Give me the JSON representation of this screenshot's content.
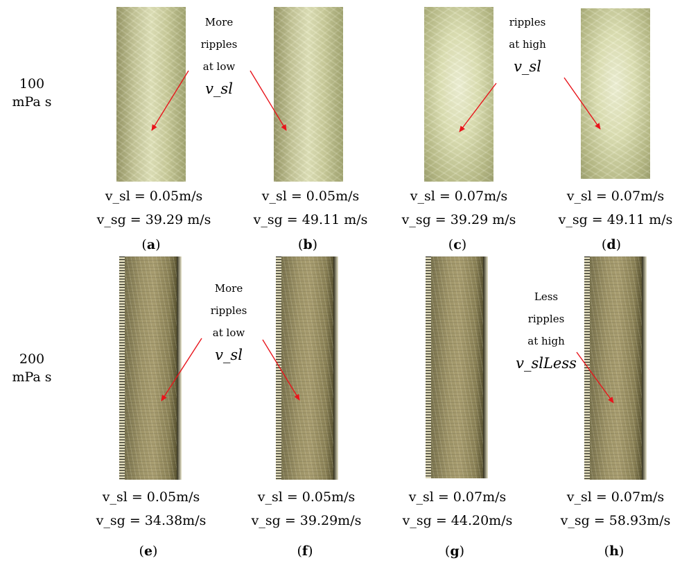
{
  "rows": [
    {
      "label_line1": "100",
      "label_line2": "mPa s",
      "annotations": [
        {
          "lines": [
            "More",
            "ripples",
            "at low"
          ],
          "math": "v_sl"
        },
        {
          "lines": [
            "ripples",
            "at high"
          ],
          "math": "v_sl"
        }
      ],
      "panels": [
        {
          "letter": "a",
          "vsl": "v_sl = 0.05m/s",
          "vsg": "v_sg = 39.29 m/s"
        },
        {
          "letter": "b",
          "vsl": "v_sl = 0.05m/s",
          "vsg": "v_sg = 49.11 m/s"
        },
        {
          "letter": "c",
          "vsl": "v_sl = 0.07m/s",
          "vsg": "v_sg = 39.29 m/s"
        },
        {
          "letter": "d",
          "vsl": "v_sl = 0.07m/s",
          "vsg": "v_sg = 49.11 m/s"
        }
      ]
    },
    {
      "label_line1": "200",
      "label_line2": "mPa s",
      "annotations": [
        {
          "lines": [
            "More",
            "ripples",
            "at low"
          ],
          "math": "v_sl"
        },
        {
          "lines": [
            "Less",
            "ripples",
            "at high"
          ],
          "math": "v_slLess"
        }
      ],
      "panels": [
        {
          "letter": "e",
          "vsl": "v_sl = 0.05m/s",
          "vsg": "v_sg = 34.38m/s"
        },
        {
          "letter": "f",
          "vsl": "v_sl = 0.05m/s",
          "vsg": "v_sg = 39.29m/s"
        },
        {
          "letter": "g",
          "vsl": "v_sl = 0.07m/s",
          "vsg": "v_sg = 44.20m/s"
        },
        {
          "letter": "h",
          "vsl": "v_sl = 0.07m/s",
          "vsg": "v_sg = 58.93m/s"
        }
      ]
    }
  ],
  "colors": {
    "arrow": "#e8141b",
    "text": "#000000"
  }
}
